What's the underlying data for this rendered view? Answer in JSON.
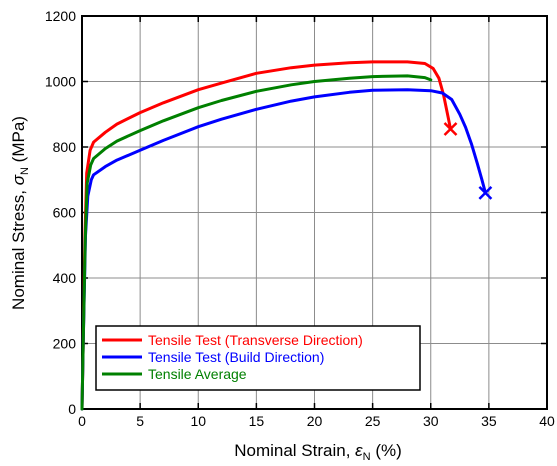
{
  "chart_data": {
    "type": "line",
    "xlabel": {
      "text": "Nominal Strain, ",
      "symbol": "ε",
      "sub": "N",
      "unit": " (%)"
    },
    "ylabel": {
      "text": "Nominal Stress, ",
      "symbol": "σ",
      "sub": "N",
      "unit": " (MPa)"
    },
    "xlim": [
      0,
      40
    ],
    "ylim": [
      0,
      1200
    ],
    "xticks": [
      0,
      5,
      10,
      15,
      20,
      25,
      30,
      35,
      40
    ],
    "yticks": [
      0,
      200,
      400,
      600,
      800,
      1000,
      1200
    ],
    "grid": true,
    "legend_position": "bottom-left",
    "series": [
      {
        "name": "Tensile Test (Transverse Direction)",
        "color": "#ff0000",
        "points": [
          [
            0,
            0
          ],
          [
            0.1,
            200
          ],
          [
            0.25,
            520
          ],
          [
            0.4,
            720
          ],
          [
            0.7,
            790
          ],
          [
            1,
            815
          ],
          [
            2,
            845
          ],
          [
            3,
            870
          ],
          [
            5,
            905
          ],
          [
            7,
            935
          ],
          [
            10,
            975
          ],
          [
            12,
            995
          ],
          [
            15,
            1025
          ],
          [
            18,
            1042
          ],
          [
            20,
            1050
          ],
          [
            23,
            1057
          ],
          [
            25,
            1060
          ],
          [
            28,
            1060
          ],
          [
            29.5,
            1055
          ],
          [
            30.2,
            1040
          ],
          [
            30.7,
            1010
          ],
          [
            31.1,
            960
          ],
          [
            31.5,
            890
          ],
          [
            31.7,
            855
          ]
        ],
        "end_marker": {
          "x": 31.7,
          "y": 855,
          "symbol": "X"
        }
      },
      {
        "name": "Tensile Test (Build Direction)",
        "color": "#0000ff",
        "points": [
          [
            0,
            0
          ],
          [
            0.1,
            200
          ],
          [
            0.3,
            530
          ],
          [
            0.5,
            650
          ],
          [
            0.8,
            700
          ],
          [
            1,
            715
          ],
          [
            2,
            740
          ],
          [
            3,
            760
          ],
          [
            5,
            790
          ],
          [
            7,
            820
          ],
          [
            10,
            862
          ],
          [
            12,
            885
          ],
          [
            15,
            915
          ],
          [
            18,
            940
          ],
          [
            20,
            953
          ],
          [
            23,
            967
          ],
          [
            25,
            973
          ],
          [
            28,
            975
          ],
          [
            30,
            972
          ],
          [
            31,
            965
          ],
          [
            31.8,
            945
          ],
          [
            32.5,
            900
          ],
          [
            33,
            860
          ],
          [
            33.5,
            810
          ],
          [
            34,
            750
          ],
          [
            34.4,
            700
          ],
          [
            34.7,
            660
          ]
        ],
        "end_marker": {
          "x": 34.7,
          "y": 660,
          "symbol": "X"
        }
      },
      {
        "name": "Tensile Average",
        "color": "#008000",
        "points": [
          [
            0,
            0
          ],
          [
            0.1,
            200
          ],
          [
            0.28,
            525
          ],
          [
            0.45,
            690
          ],
          [
            0.75,
            745
          ],
          [
            1,
            765
          ],
          [
            2,
            795
          ],
          [
            3,
            818
          ],
          [
            5,
            850
          ],
          [
            7,
            880
          ],
          [
            10,
            920
          ],
          [
            12,
            942
          ],
          [
            15,
            970
          ],
          [
            18,
            990
          ],
          [
            20,
            1000
          ],
          [
            23,
            1010
          ],
          [
            25,
            1015
          ],
          [
            28,
            1017
          ],
          [
            29.5,
            1012
          ],
          [
            30,
            1005
          ]
        ]
      }
    ]
  }
}
